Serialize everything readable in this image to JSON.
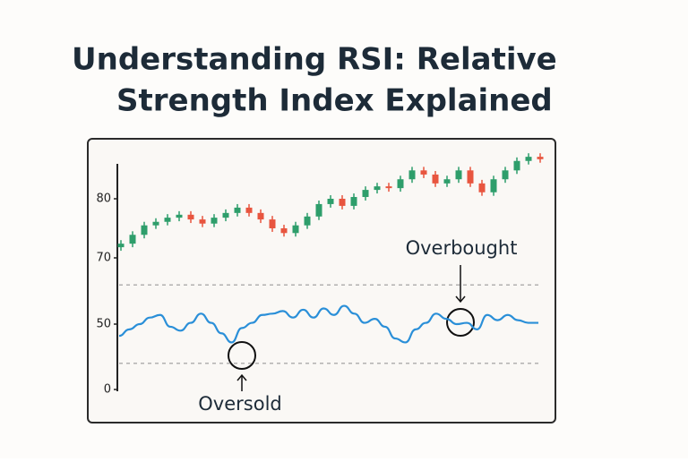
{
  "chart_data": [
    {
      "type": "candlestick",
      "title": "Understanding RSI: Relative Strength Index Explained",
      "up_color": "#2e9e6b",
      "down_color": "#e8553f",
      "open": [
        71.8,
        72.4,
        73.9,
        75.5,
        76.1,
        76.8,
        77.3,
        76.5,
        75.8,
        76.8,
        77.6,
        78.5,
        77.6,
        76.5,
        75.0,
        74.2,
        75.5,
        77.0,
        79.1,
        80.0,
        78.8,
        80.3,
        81.5,
        82.1,
        81.8,
        83.3,
        84.8,
        84.1,
        82.6,
        83.3,
        84.8,
        82.6,
        81.1,
        83.3,
        84.8,
        86.4,
        87.1
      ],
      "high": [
        73.0,
        74.5,
        76.1,
        76.7,
        77.4,
        77.9,
        77.9,
        77.1,
        77.4,
        78.2,
        79.1,
        79.1,
        78.2,
        77.1,
        75.6,
        76.1,
        77.6,
        79.7,
        80.6,
        80.6,
        80.9,
        82.1,
        82.7,
        82.7,
        83.9,
        85.4,
        85.4,
        84.7,
        83.9,
        85.4,
        85.4,
        83.2,
        83.9,
        85.4,
        87.0,
        87.7,
        87.7
      ],
      "low": [
        71.2,
        71.8,
        73.3,
        74.9,
        75.5,
        76.2,
        75.9,
        75.2,
        75.2,
        76.2,
        77.0,
        77.0,
        75.9,
        74.4,
        73.6,
        73.6,
        74.9,
        76.4,
        78.5,
        78.2,
        78.2,
        79.7,
        80.9,
        81.2,
        81.2,
        82.7,
        83.5,
        82.0,
        82.0,
        82.7,
        82.0,
        80.5,
        80.5,
        82.7,
        84.2,
        85.8,
        86.1
      ],
      "close": [
        72.4,
        73.9,
        75.5,
        76.1,
        76.8,
        77.3,
        76.5,
        75.8,
        76.8,
        77.6,
        78.5,
        77.6,
        76.5,
        75.0,
        74.2,
        75.5,
        77.0,
        79.1,
        80.0,
        78.8,
        80.3,
        81.5,
        82.1,
        81.8,
        83.3,
        84.8,
        84.1,
        82.6,
        83.3,
        84.8,
        82.6,
        81.1,
        83.3,
        84.8,
        86.4,
        87.1,
        86.7
      ],
      "ylim": [
        68,
        89
      ],
      "yticks": [
        70,
        80
      ]
    },
    {
      "type": "line",
      "color": "#2a8fd8",
      "values": [
        41,
        46,
        50,
        55,
        57,
        48,
        45,
        51,
        58,
        51,
        43,
        36,
        47,
        51,
        57,
        58,
        60,
        55,
        61,
        55,
        62,
        57,
        64,
        58,
        51,
        54,
        48,
        39,
        36,
        46,
        51,
        58,
        54,
        50,
        51,
        46,
        57,
        53,
        57,
        53,
        51,
        51
      ],
      "ylim": [
        0,
        100
      ],
      "yticks": [
        0,
        50
      ],
      "hlines": [
        20,
        80
      ],
      "annotations": [
        "Oversold",
        "Overbought"
      ]
    }
  ]
}
